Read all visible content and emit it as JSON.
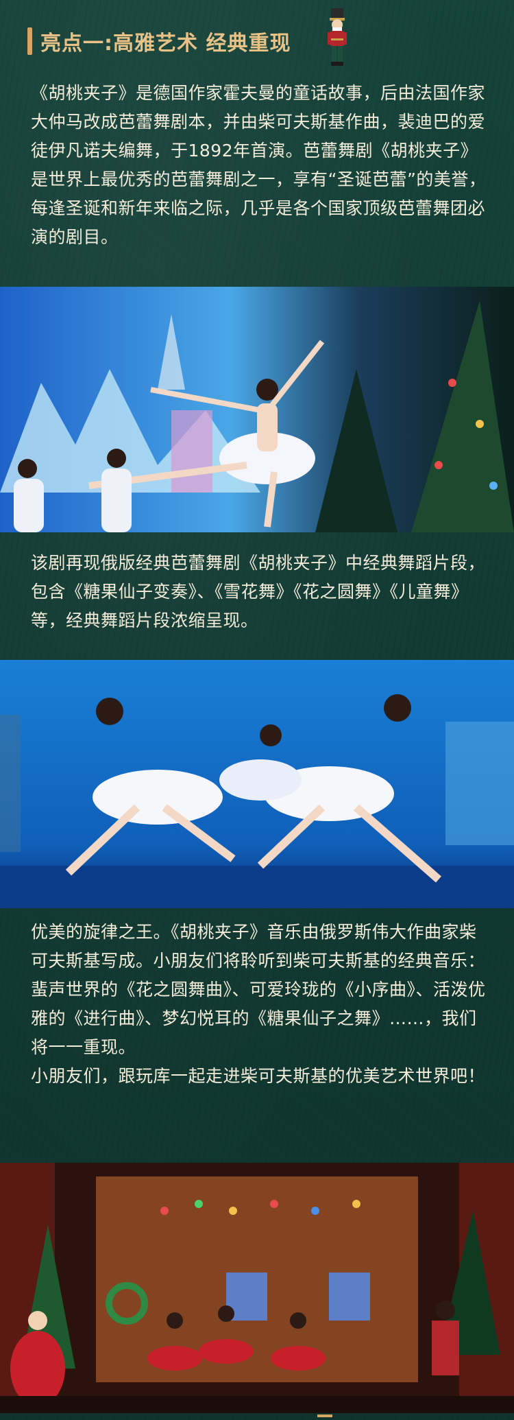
{
  "header": {
    "title": "亮点一:高雅艺术 经典重现",
    "accent_color": "#d6a565",
    "icon": "nutcracker-icon"
  },
  "intro": {
    "paragraph": "《胡桃夹子》是德国作家霍夫曼的童话故事，后由法国作家大仲马改成芭蕾舞剧本，并由柴可夫斯基作曲，裴迪巴的爱徒伊凡诺夫编舞，于1892年首演。芭蕾舞剧《胡桃夹子》是世界上最优秀的芭蕾舞剧之一，享有“圣诞芭蕾”的美誉，每逢圣诞和新年来临之际，几乎是各个国家顶级芭蕾舞团必演的剧目。"
  },
  "photos": [
    {
      "icon": "ballet-leap-photo"
    },
    {
      "icon": "ballet-kneel-photo"
    },
    {
      "icon": "stage-christmas-photo"
    }
  ],
  "section2": {
    "paragraph": "该剧再现俄版经典芭蕾舞剧《胡桃夹子》中经典舞蹈片段，包含《糖果仙子变奏》、《雪花舞》《花之圆舞》《儿童舞》等，经典舞蹈片段浓缩呈现。"
  },
  "section3": {
    "paragraph1": "优美的旋律之王。《胡桃夹子》音乐由俄罗斯伟大作曲家柴可夫斯基写成。小朋友们将聆听到柴可夫斯基的经典音乐：蜚声世界的《花之圆舞曲》、可爱玲珑的《小序曲》、活泼优雅的《进行曲》、梦幻悦耳的《糖果仙子之舞》……，我们将一一重现。",
    "paragraph2": "小朋友们，跟玩库一起走进柴可夫斯基的优美艺术世界吧！"
  },
  "colors": {
    "background": "#123b33",
    "text": "#f3ecda",
    "title": "#e9c287"
  }
}
